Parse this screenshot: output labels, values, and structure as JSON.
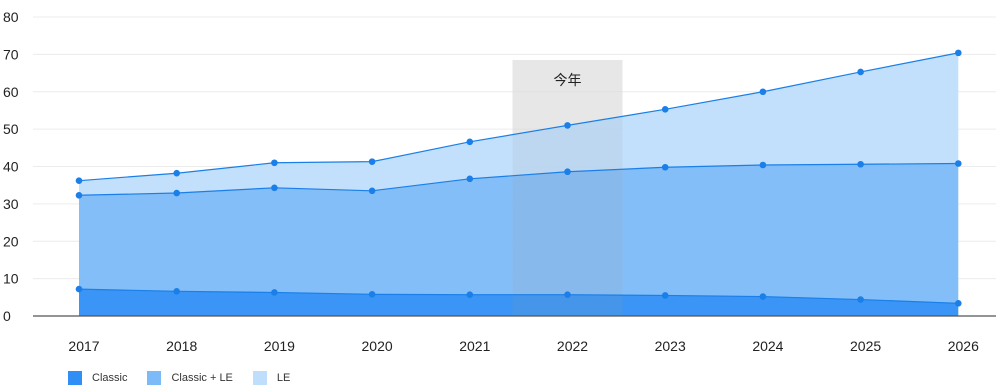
{
  "chart_data": {
    "type": "area",
    "stacked": true,
    "x": [
      "2017",
      "2018",
      "2019",
      "2020",
      "2021",
      "2022",
      "2023",
      "2024",
      "2025",
      "2026"
    ],
    "ylim": [
      0,
      80
    ],
    "yticks": [
      0,
      10,
      20,
      30,
      40,
      50,
      60,
      70,
      80
    ],
    "grid": true,
    "series": [
      {
        "name": "Classic",
        "values": [
          7.2,
          6.6,
          6.3,
          5.8,
          5.7,
          5.7,
          5.5,
          5.2,
          4.4,
          3.4
        ],
        "color": "#2f8ff5"
      },
      {
        "name": "Classic + LE",
        "values": [
          32.3,
          32.9,
          34.3,
          33.5,
          36.7,
          38.6,
          39.8,
          40.4,
          40.6,
          40.8
        ],
        "color": "#7dbbf8"
      },
      {
        "name": "LE",
        "values": [
          36.2,
          38.2,
          41.0,
          41.3,
          46.6,
          51.0,
          55.3,
          60.0,
          65.3,
          70.4
        ],
        "color": "#bfdefc"
      }
    ],
    "highlight": {
      "x": "2022",
      "label": "今年"
    },
    "legend_placement": "bottom-left",
    "line_color": "#1a7fe8"
  }
}
